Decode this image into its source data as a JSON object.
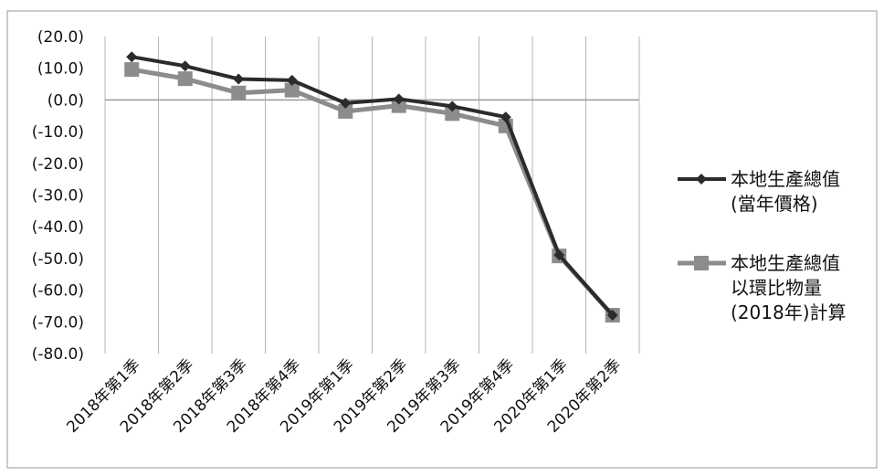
{
  "chart_data": {
    "type": "line",
    "title": "",
    "xlabel": "",
    "ylabel": "",
    "categories": [
      "2018年第1季",
      "2018年第2季",
      "2018年第3季",
      "2018年第4季",
      "2019年第1季",
      "2019年第2季",
      "2019年第3季",
      "2019年第4季",
      "2020年第1季",
      "2020年第2季"
    ],
    "ylim": [
      -80,
      20
    ],
    "yticks": [
      20,
      10,
      0,
      -10,
      -20,
      -30,
      -40,
      -50,
      -60,
      -70,
      -80
    ],
    "ytick_labels": [
      "(20.0)",
      "(10.0)",
      "(0.0)",
      "(-10.0)",
      "(-20.0)",
      "(-30.0)",
      "(-40.0)",
      "(-50.0)",
      "(-60.0)",
      "(-70.0)",
      "(-80.0)"
    ],
    "grid": "vertical",
    "legend_position": "right",
    "series": [
      {
        "name": "本地生產總值(當年價格)",
        "legend_lines": [
          "本地生產總值",
          "(當年價格)"
        ],
        "marker": "diamond",
        "color": "#2b2b2b",
        "values": [
          13.6,
          10.7,
          6.6,
          6.2,
          -1.0,
          0.3,
          -2.0,
          -5.4,
          -48.9,
          -67.9
        ]
      },
      {
        "name": "本地生產總值以環比物量(2018年)計算",
        "legend_lines": [
          "本地生產總值",
          "以環比物量",
          "(2018年)計算"
        ],
        "marker": "square",
        "color": "#8c8c8c",
        "values": [
          9.6,
          6.7,
          2.2,
          3.1,
          -3.6,
          -1.8,
          -4.3,
          -8.2,
          -49.2,
          -67.9
        ]
      }
    ]
  }
}
